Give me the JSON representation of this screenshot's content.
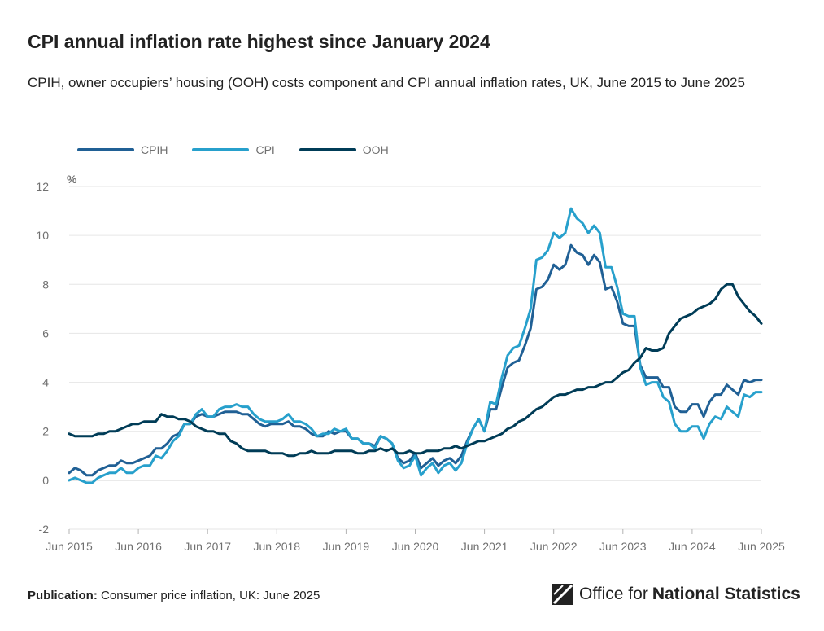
{
  "title": "CPI annual inflation rate highest since January 2024",
  "subtitle": "CPIH, owner occupiers’ housing (OOH) costs component and CPI annual inflation rates, UK, June 2015 to June 2025",
  "publication_label": "Publication:",
  "publication_text": "Consumer price inflation, UK: June 2025",
  "logo": {
    "plain": "Office for",
    "bold": "National Statistics",
    "icon": "ons-logo-icon"
  },
  "chart_data": {
    "type": "line",
    "title": "CPI annual inflation rate highest since January 2024",
    "ylabel": "%",
    "xlabel": "",
    "ylim": [
      -2,
      12
    ],
    "yticks": [
      -2,
      0,
      2,
      4,
      6,
      8,
      10,
      12
    ],
    "x_start": "Jun 2015",
    "x_end": "Jun 2025",
    "n_months": 121,
    "xtick_labels": [
      "Jun 2015",
      "Jun 2016",
      "Jun 2017",
      "Jun 2018",
      "Jun 2019",
      "Jun 2020",
      "Jun 2021",
      "Jun 2022",
      "Jun 2023",
      "Jun 2024",
      "Jun 2025"
    ],
    "legend": [
      "CPIH",
      "CPI",
      "OOH"
    ],
    "series": [
      {
        "name": "CPIH",
        "color": "#206095",
        "values": [
          0.3,
          0.5,
          0.4,
          0.2,
          0.2,
          0.4,
          0.5,
          0.6,
          0.6,
          0.8,
          0.7,
          0.7,
          0.8,
          0.9,
          1.0,
          1.3,
          1.3,
          1.5,
          1.8,
          1.9,
          2.3,
          2.3,
          2.6,
          2.7,
          2.6,
          2.6,
          2.7,
          2.8,
          2.8,
          2.8,
          2.7,
          2.7,
          2.5,
          2.3,
          2.2,
          2.3,
          2.3,
          2.3,
          2.4,
          2.2,
          2.2,
          2.1,
          1.9,
          1.8,
          1.8,
          2.0,
          1.9,
          2.0,
          2.0,
          1.7,
          1.7,
          1.5,
          1.5,
          1.4,
          1.8,
          1.7,
          1.5,
          0.9,
          0.7,
          0.8,
          1.1,
          0.5,
          0.7,
          0.9,
          0.6,
          0.8,
          0.9,
          0.7,
          1.0,
          1.6,
          2.1,
          2.5,
          2.0,
          2.9,
          2.9,
          3.8,
          4.6,
          4.8,
          4.9,
          5.5,
          6.2,
          7.8,
          7.9,
          8.2,
          8.8,
          8.6,
          8.8,
          9.6,
          9.3,
          9.2,
          8.8,
          9.2,
          8.9,
          7.8,
          7.9,
          7.3,
          6.4,
          6.3,
          6.3,
          4.7,
          4.2,
          4.2,
          4.2,
          3.8,
          3.8,
          3.0,
          2.8,
          2.8,
          3.1,
          3.1,
          2.6,
          3.2,
          3.5,
          3.5,
          3.9,
          3.7,
          3.5,
          4.1,
          4.0,
          4.1,
          4.1
        ]
      },
      {
        "name": "CPI",
        "color": "#27a0cc",
        "values": [
          0.0,
          0.1,
          0.0,
          -0.1,
          -0.1,
          0.1,
          0.2,
          0.3,
          0.3,
          0.5,
          0.3,
          0.3,
          0.5,
          0.6,
          0.6,
          1.0,
          0.9,
          1.2,
          1.6,
          1.8,
          2.3,
          2.3,
          2.7,
          2.9,
          2.6,
          2.6,
          2.9,
          3.0,
          3.0,
          3.1,
          3.0,
          3.0,
          2.7,
          2.5,
          2.4,
          2.4,
          2.4,
          2.5,
          2.7,
          2.4,
          2.4,
          2.3,
          2.1,
          1.8,
          1.9,
          1.9,
          2.1,
          2.0,
          2.1,
          1.7,
          1.7,
          1.5,
          1.5,
          1.3,
          1.8,
          1.7,
          1.5,
          0.8,
          0.5,
          0.6,
          1.0,
          0.2,
          0.5,
          0.7,
          0.3,
          0.6,
          0.7,
          0.4,
          0.7,
          1.5,
          2.1,
          2.5,
          2.0,
          3.2,
          3.1,
          4.2,
          5.1,
          5.4,
          5.5,
          6.2,
          7.0,
          9.0,
          9.1,
          9.4,
          10.1,
          9.9,
          10.1,
          11.1,
          10.7,
          10.5,
          10.1,
          10.4,
          10.1,
          8.7,
          8.7,
          7.9,
          6.8,
          6.7,
          6.7,
          4.6,
          3.9,
          4.0,
          4.0,
          3.4,
          3.2,
          2.3,
          2.0,
          2.0,
          2.2,
          2.2,
          1.7,
          2.3,
          2.6,
          2.5,
          3.0,
          2.8,
          2.6,
          3.5,
          3.4,
          3.6,
          3.6
        ]
      },
      {
        "name": "OOH",
        "color": "#003c57",
        "values": [
          1.9,
          1.8,
          1.8,
          1.8,
          1.8,
          1.9,
          1.9,
          2.0,
          2.0,
          2.1,
          2.2,
          2.3,
          2.3,
          2.4,
          2.4,
          2.4,
          2.7,
          2.6,
          2.6,
          2.5,
          2.5,
          2.4,
          2.2,
          2.1,
          2.0,
          2.0,
          1.9,
          1.9,
          1.6,
          1.5,
          1.3,
          1.2,
          1.2,
          1.2,
          1.2,
          1.1,
          1.1,
          1.1,
          1.0,
          1.0,
          1.1,
          1.1,
          1.2,
          1.1,
          1.1,
          1.1,
          1.2,
          1.2,
          1.2,
          1.2,
          1.1,
          1.1,
          1.2,
          1.2,
          1.3,
          1.2,
          1.3,
          1.1,
          1.1,
          1.2,
          1.1,
          1.1,
          1.2,
          1.2,
          1.2,
          1.3,
          1.3,
          1.4,
          1.3,
          1.4,
          1.5,
          1.6,
          1.6,
          1.7,
          1.8,
          1.9,
          2.1,
          2.2,
          2.4,
          2.5,
          2.7,
          2.9,
          3.0,
          3.2,
          3.4,
          3.5,
          3.5,
          3.6,
          3.7,
          3.7,
          3.8,
          3.8,
          3.9,
          4.0,
          4.0,
          4.2,
          4.4,
          4.5,
          4.8,
          5.0,
          5.4,
          5.3,
          5.3,
          5.4,
          6.0,
          6.3,
          6.6,
          6.7,
          6.8,
          7.0,
          7.1,
          7.2,
          7.4,
          7.8,
          8.0,
          8.0,
          7.5,
          7.2,
          6.9,
          6.7,
          6.4
        ]
      }
    ]
  }
}
